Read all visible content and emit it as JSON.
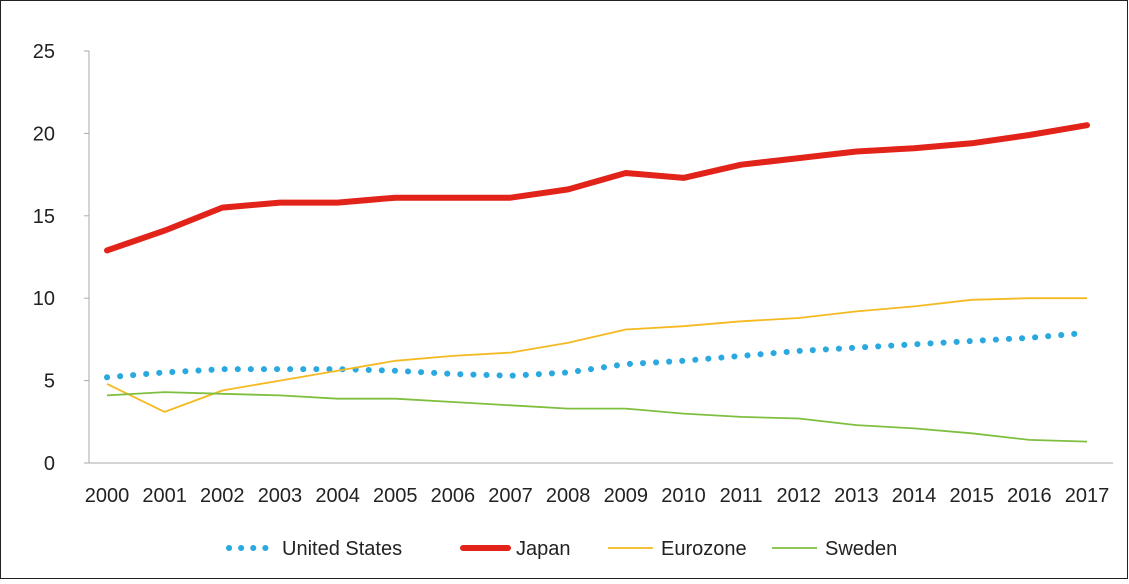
{
  "chart_data": {
    "type": "line",
    "categories": [
      "2000",
      "2001",
      "2002",
      "2003",
      "2004",
      "2005",
      "2006",
      "2007",
      "2008",
      "2009",
      "2010",
      "2011",
      "2012",
      "2013",
      "2014",
      "2015",
      "2016",
      "2017"
    ],
    "ylim": [
      0,
      25
    ],
    "yticks": [
      0,
      5,
      10,
      15,
      20,
      25
    ],
    "grid": false,
    "legend_position": "bottom",
    "series": [
      {
        "name": "United States",
        "color": "#29a9df",
        "style": "dotted",
        "values": [
          5.2,
          5.5,
          5.7,
          5.7,
          5.7,
          5.6,
          5.4,
          5.3,
          5.5,
          6.0,
          6.2,
          6.5,
          6.8,
          7.0,
          7.2,
          7.4,
          7.6,
          7.9
        ]
      },
      {
        "name": "Japan",
        "color": "#e2231a",
        "style": "thick",
        "values": [
          12.9,
          14.1,
          15.5,
          15.8,
          15.8,
          16.1,
          16.1,
          16.1,
          16.6,
          17.6,
          17.3,
          18.1,
          18.5,
          18.9,
          19.1,
          19.4,
          19.9,
          20.5
        ]
      },
      {
        "name": "Eurozone",
        "color": "#f5b921",
        "style": "thin",
        "values": [
          4.8,
          3.1,
          4.4,
          5.0,
          5.6,
          6.2,
          6.5,
          6.7,
          7.3,
          8.1,
          8.3,
          8.6,
          8.8,
          9.2,
          9.5,
          9.9,
          10.0,
          10.0
        ]
      },
      {
        "name": "Sweden",
        "color": "#7fbf3f",
        "style": "thin",
        "values": [
          4.1,
          4.3,
          4.2,
          4.1,
          3.9,
          3.9,
          3.7,
          3.5,
          3.3,
          3.3,
          3.0,
          2.8,
          2.7,
          2.3,
          2.1,
          1.8,
          1.4,
          1.3
        ]
      }
    ]
  }
}
